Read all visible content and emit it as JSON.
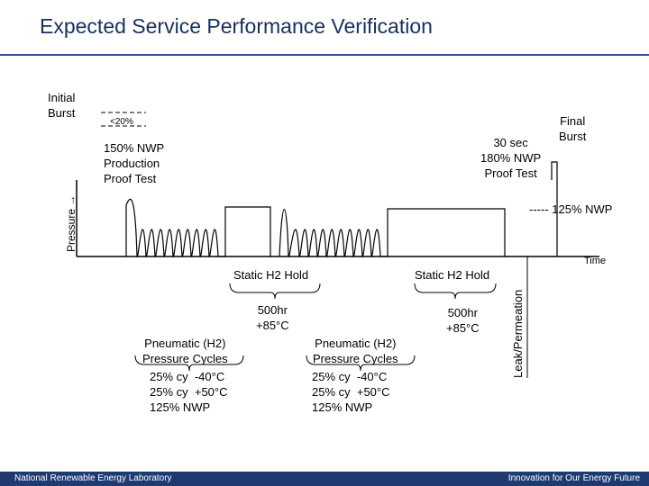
{
  "title": "Expected Service Performance Verification",
  "labels": {
    "initial_burst": "Initial\nBurst",
    "lt20": "<20%",
    "production_proof": "150% NWP\nProduction\nProof Test",
    "proof_test_180": "30 sec\n180% NWP\nProof Test",
    "final_burst": "Final\nBurst",
    "nwp_125_line": "----- 125% NWP",
    "pressure_axis": "Pressure →",
    "time_axis": "Time",
    "leak_permeation": "Leak/Permeation",
    "static_hold_1": "Static H2 Hold",
    "static_hold_2": "Static H2 Hold",
    "hold_1_conditions": "500hr\n+85°C",
    "hold_2_conditions": "500hr\n+85°C",
    "pneumatic_1": "Pneumatic (H2)\nPressure Cycles",
    "pneumatic_2": "Pneumatic (H2)\nPressure Cycles",
    "cycle_conditions_1": "25% cy  -40°C\n25% cy  +50°C\n125% NWP",
    "cycle_conditions_2": "25% cy  -40°C\n25% cy  +50°C\n125% NWP"
  },
  "footer": {
    "left": "National Renewable Energy Laboratory",
    "right": "Innovation for Our Energy Future"
  },
  "colors": {
    "title": "#17305e",
    "footer_bg": "#1f3a70",
    "rule": "#2f4f8f"
  }
}
